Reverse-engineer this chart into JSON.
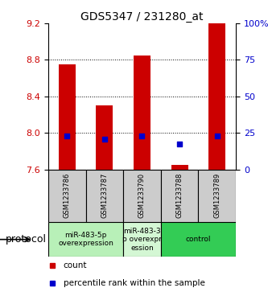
{
  "title": "GDS5347 / 231280_at",
  "samples": [
    "GSM1233786",
    "GSM1233787",
    "GSM1233790",
    "GSM1233788",
    "GSM1233789"
  ],
  "bar_values": [
    8.75,
    8.3,
    8.85,
    7.65,
    9.2
  ],
  "blue_values": [
    7.965,
    7.93,
    7.965,
    7.875,
    7.965
  ],
  "ylim": [
    7.6,
    9.2
  ],
  "yticks_left": [
    7.6,
    8.0,
    8.4,
    8.8,
    9.2
  ],
  "yticks_right": [
    0,
    25,
    50,
    75,
    100
  ],
  "yticks_right_labels": [
    "0",
    "25",
    "50",
    "75",
    "100%"
  ],
  "bar_color": "#cc0000",
  "blue_color": "#0000cc",
  "bar_bottom": 7.6,
  "proto_groups": [
    {
      "indices": [
        0,
        1
      ],
      "label": "miR-483-5p\noverexpression",
      "color": "#b8f0b8"
    },
    {
      "indices": [
        2
      ],
      "label": "miR-483-3\np overexpr\nession",
      "color": "#d4f7d4"
    },
    {
      "indices": [
        3,
        4
      ],
      "label": "control",
      "color": "#33cc55"
    }
  ],
  "protocol_label": "protocol",
  "legend_count_label": "count",
  "legend_pct_label": "percentile rank within the sample",
  "bg_color": "#ffffff",
  "ylabel_left_color": "#cc0000",
  "ylabel_right_color": "#0000cc",
  "sample_box_color": "#cccccc",
  "bar_width": 0.45,
  "title_fontsize": 10,
  "tick_fontsize": 8,
  "sample_fontsize": 6,
  "proto_fontsize": 6.5,
  "legend_fontsize": 7.5
}
